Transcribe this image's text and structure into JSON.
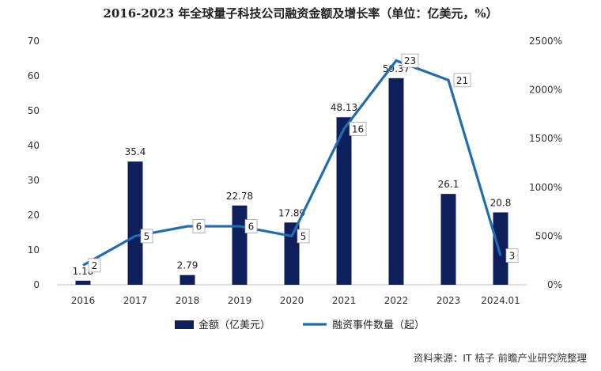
{
  "chart_data": {
    "type": "bar+line",
    "title": "2016-2023 年全球量子科技公司融资金额及增长率（单位：亿美元，%）",
    "categories": [
      "2016",
      "2017",
      "2018",
      "2019",
      "2020",
      "2021",
      "2022",
      "2023",
      "2024.01"
    ],
    "series": [
      {
        "name": "金额（亿美元）",
        "type": "bar",
        "axis": "left",
        "color": "#0f1f5c",
        "values": [
          1.18,
          35.4,
          2.79,
          22.78,
          17.89,
          48.13,
          59.37,
          26.1,
          20.8
        ],
        "labels": [
          "1.18",
          "35.4",
          "2.79",
          "22.78",
          "17.89",
          "48.13",
          "59.37",
          "26.1",
          "20.8"
        ]
      },
      {
        "name": "融资事件数量（起）",
        "type": "line",
        "axis": "right",
        "color": "#1f6db0",
        "values": [
          2,
          5,
          6,
          6,
          5,
          16,
          23,
          21,
          3
        ],
        "labels": [
          "2",
          "5",
          "6",
          "6",
          "5",
          "16",
          "23",
          "21",
          "3"
        ],
        "plotted_percent": [
          200,
          500,
          600,
          600,
          500,
          1600,
          2300,
          2100,
          300
        ]
      }
    ],
    "left_axis": {
      "ylim": [
        0,
        70
      ],
      "ticks": [
        "0",
        "10",
        "20",
        "30",
        "40",
        "50",
        "60",
        "70"
      ]
    },
    "right_axis": {
      "ylim": [
        0,
        2500
      ],
      "ticks": [
        "0%",
        "500%",
        "1000%",
        "1500%",
        "2000%",
        "2500%"
      ]
    },
    "legend_position": "bottom",
    "grid": false
  },
  "source": "资料来源：IT 桔子 前瞻产业研究院整理"
}
